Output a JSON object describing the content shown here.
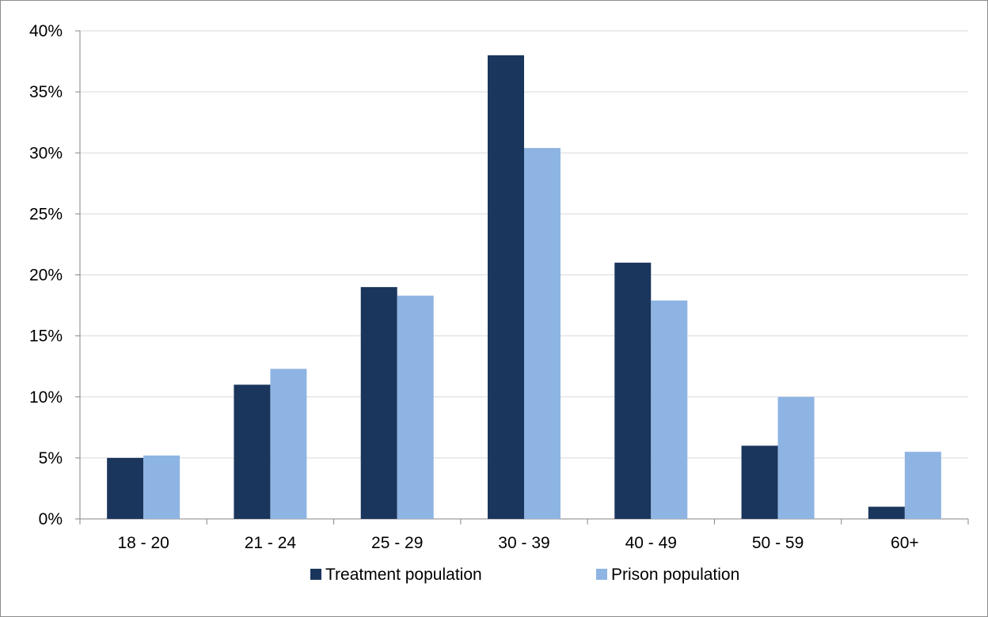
{
  "chart_data": {
    "type": "bar",
    "title": "",
    "xlabel": "",
    "ylabel": "",
    "categories": [
      "18 - 20",
      "21 - 24",
      "25 - 29",
      "30 - 39",
      "40 - 49",
      "50 - 59",
      "60+"
    ],
    "series": [
      {
        "name": "Treatment population",
        "color": "#1b365d",
        "values": [
          5,
          11,
          19,
          38,
          21,
          6,
          1
        ]
      },
      {
        "name": "Prison population",
        "color": "#8eb4e3",
        "values": [
          5.2,
          12.3,
          18.3,
          30.4,
          17.9,
          10,
          5.5
        ]
      }
    ],
    "ylim": [
      0,
      40
    ],
    "yticks": [
      0,
      5,
      10,
      15,
      20,
      25,
      30,
      35,
      40
    ],
    "ytick_labels": [
      "0%",
      "5%",
      "10%",
      "15%",
      "20%",
      "25%",
      "30%",
      "35%",
      "40%"
    ],
    "grid": true,
    "legend": "bottom"
  }
}
